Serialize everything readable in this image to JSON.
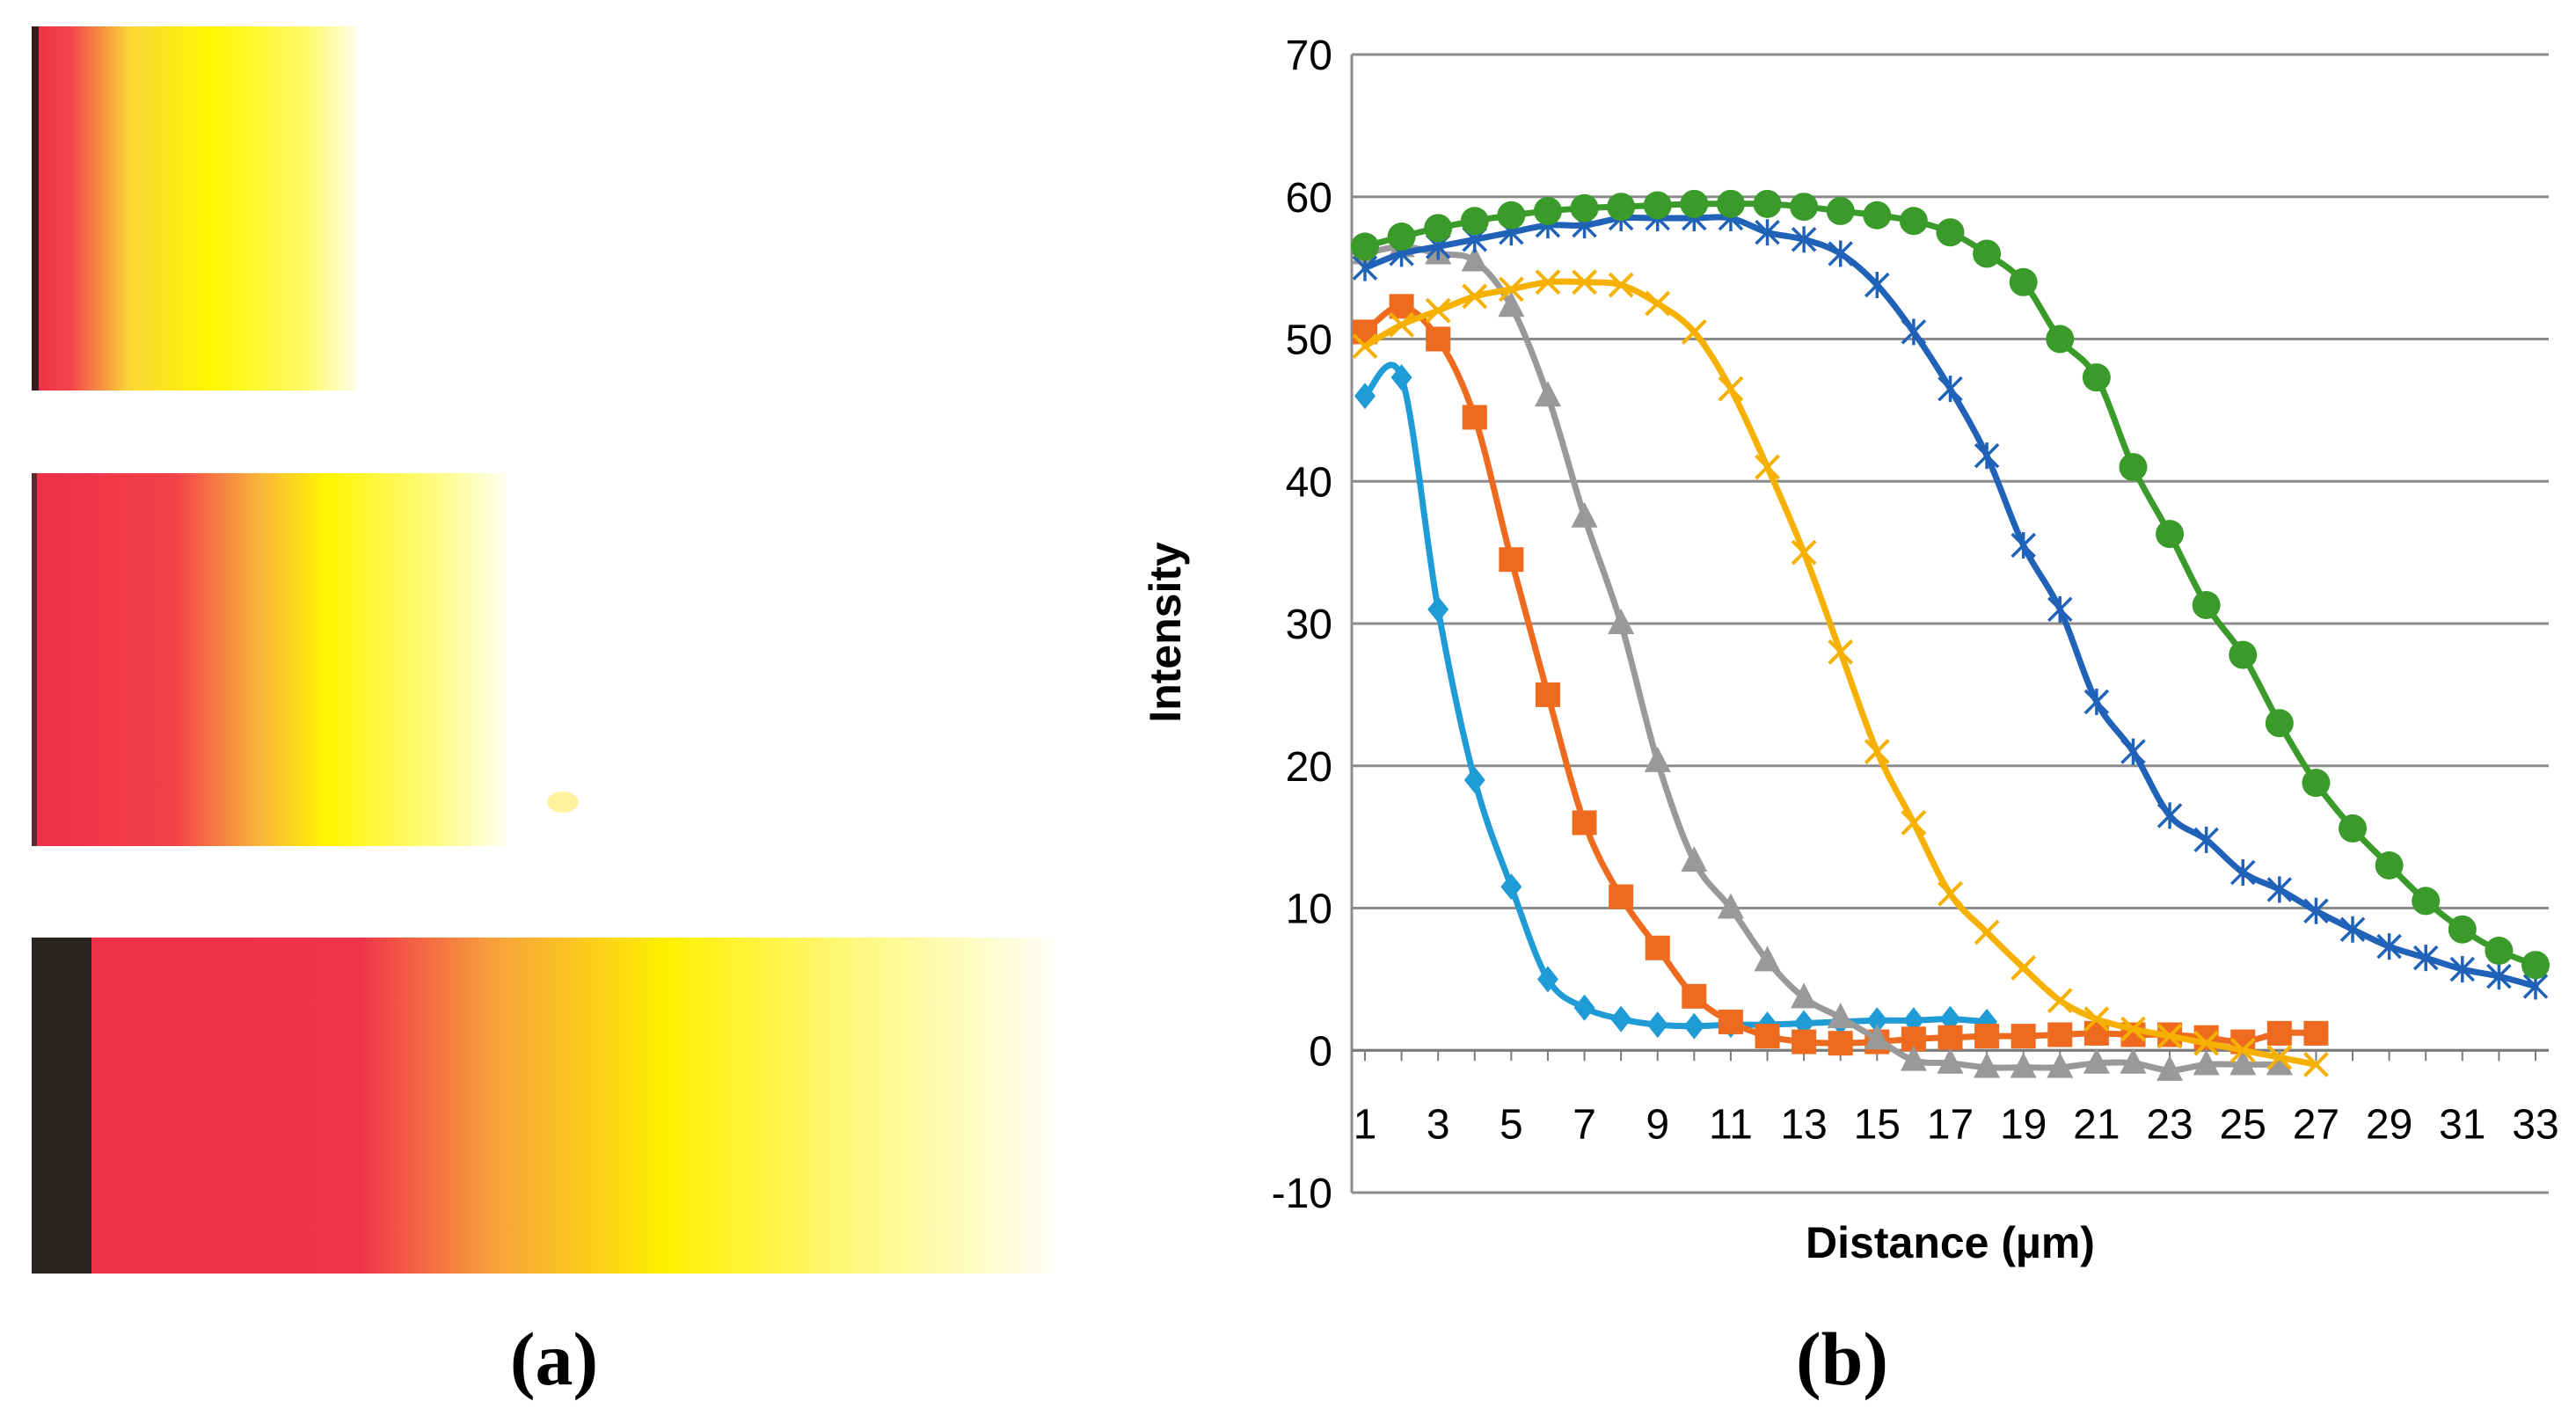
{
  "figure": {
    "panel_a_label": "(a)",
    "panel_b_label": "(b)"
  },
  "stripes": [
    {
      "dark_start": true,
      "colors": [
        "#ee2f48",
        "#f66340",
        "#fde62a",
        "#fff900",
        "#fffce0"
      ]
    },
    {
      "dark_start": false,
      "colors": [
        "#ee2f48",
        "#f66340",
        "#fde62a",
        "#fff900",
        "#fffce0"
      ]
    },
    {
      "dark_start": true,
      "colors": [
        "#ee2f48",
        "#f05545",
        "#fde62a",
        "#fff900",
        "#fffce0"
      ]
    }
  ],
  "chart_data": {
    "type": "line",
    "title": "",
    "xlabel": "Distance (µm)",
    "ylabel": "Intensity",
    "xlim": [
      1,
      33
    ],
    "ylim": [
      -10,
      70
    ],
    "xticks": [
      "1",
      "3",
      "5",
      "7",
      "9",
      "11",
      "13",
      "15",
      "17",
      "19",
      "21",
      "23",
      "25",
      "27",
      "29",
      "31",
      "33"
    ],
    "yticks": [
      "-10",
      "0",
      "10",
      "20",
      "30",
      "40",
      "50",
      "60",
      "70"
    ],
    "grid": "horizontal",
    "legend": "none",
    "series": [
      {
        "color": "#1f9bd6",
        "marker": "diamond",
        "x": [
          1,
          2,
          3,
          4,
          5,
          6,
          7,
          8,
          9,
          10,
          11,
          12,
          13,
          14,
          15,
          16,
          17,
          18
        ],
        "y": [
          46,
          47.3,
          31,
          19,
          11.5,
          5,
          3,
          2.2,
          1.8,
          1.7,
          1.8,
          1.8,
          1.9,
          2,
          2.1,
          2.1,
          2.2,
          2
        ]
      },
      {
        "color": "#ee6a1e",
        "marker": "square",
        "x": [
          1,
          2,
          3,
          4,
          5,
          6,
          7,
          8,
          9,
          10,
          11,
          12,
          13,
          14,
          15,
          16,
          17,
          18,
          19,
          20,
          21,
          22,
          23,
          24,
          25,
          26,
          27
        ],
        "y": [
          50.5,
          52.3,
          50,
          44.5,
          34.5,
          25,
          16,
          10.8,
          7.2,
          3.8,
          2,
          1,
          0.6,
          0.5,
          0.6,
          0.8,
          0.9,
          1,
          1,
          1.1,
          1.2,
          1.1,
          1.1,
          0.9,
          0.6,
          1.2,
          1.2
        ]
      },
      {
        "color": "#999999",
        "marker": "triangle",
        "x": [
          1,
          2,
          3,
          4,
          5,
          6,
          7,
          8,
          9,
          10,
          11,
          12,
          13,
          14,
          15,
          16,
          17,
          18,
          19,
          20,
          21,
          22,
          23,
          24,
          25,
          26
        ],
        "y": [
          56,
          56.5,
          56,
          55.5,
          52.3,
          46,
          37.5,
          30,
          20.3,
          13.3,
          10,
          6.3,
          3.7,
          2.3,
          0.8,
          -0.7,
          -0.9,
          -1.2,
          -1.2,
          -1.2,
          -0.9,
          -0.9,
          -1.4,
          -1,
          -1,
          -1
        ]
      },
      {
        "color": "#f5b000",
        "marker": "x",
        "x": [
          1,
          2,
          3,
          4,
          5,
          6,
          7,
          8,
          9,
          10,
          11,
          12,
          13,
          14,
          15,
          16,
          17,
          18,
          19,
          20,
          21,
          22,
          23,
          24,
          25,
          26,
          27
        ],
        "y": [
          49.5,
          51,
          52,
          53,
          53.5,
          54,
          54,
          53.8,
          52.5,
          50.5,
          46.5,
          41,
          35,
          28,
          21,
          16,
          11,
          8.3,
          5.8,
          3.5,
          2.2,
          1.5,
          1,
          0.5,
          0,
          -0.5,
          -1
        ]
      },
      {
        "color": "#1f62b8",
        "marker": "star",
        "x": [
          1,
          2,
          3,
          4,
          5,
          6,
          7,
          8,
          9,
          10,
          11,
          12,
          13,
          14,
          15,
          16,
          17,
          18,
          19,
          20,
          21,
          22,
          23,
          24,
          25,
          26,
          27,
          28,
          29,
          30,
          31,
          32,
          33
        ],
        "y": [
          55,
          56,
          56.5,
          57,
          57.5,
          58,
          58,
          58.5,
          58.5,
          58.5,
          58.5,
          57.5,
          57,
          56,
          53.8,
          50.5,
          46.5,
          41.8,
          35.5,
          31,
          24.5,
          21,
          16.5,
          14.8,
          12.5,
          11.3,
          9.8,
          8.5,
          7.3,
          6.5,
          5.7,
          5.2,
          4.5
        ]
      },
      {
        "color": "#3a9a2a",
        "marker": "circle",
        "x": [
          1,
          2,
          3,
          4,
          5,
          6,
          7,
          8,
          9,
          10,
          11,
          12,
          13,
          14,
          15,
          16,
          17,
          18,
          19,
          20,
          21,
          22,
          23,
          24,
          25,
          26,
          27,
          28,
          29,
          30,
          31,
          32,
          33
        ],
        "y": [
          56.5,
          57.2,
          57.8,
          58.3,
          58.7,
          59,
          59.2,
          59.3,
          59.4,
          59.5,
          59.5,
          59.5,
          59.3,
          59,
          58.7,
          58.3,
          57.5,
          56,
          54,
          50,
          47.3,
          41,
          36.3,
          31.3,
          27.8,
          23,
          18.8,
          15.6,
          13,
          10.5,
          8.5,
          7,
          6
        ]
      }
    ]
  }
}
